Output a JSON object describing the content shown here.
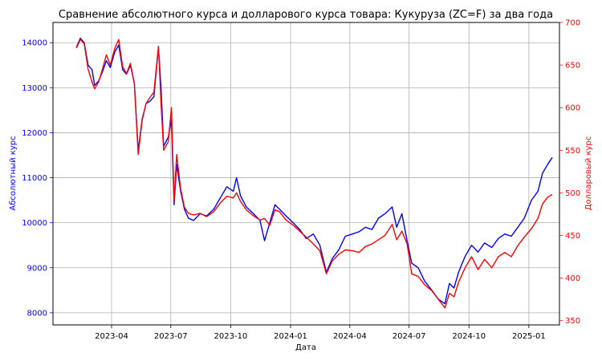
{
  "chart_data": {
    "type": "line",
    "title": "Сравнение абсолютного курса и долларового курса товара: Кукуруза (ZC=F) за два года",
    "xlabel": "Дата",
    "ylabel_left": "Абсолютный курс",
    "ylabel_right": "Долларовый курс",
    "grid": true,
    "x_ticks": [
      "2023-04",
      "2023-07",
      "2023-10",
      "2024-01",
      "2024-04",
      "2024-07",
      "2024-10",
      "2025-01"
    ],
    "y_left_ticks": [
      8000,
      9000,
      10000,
      11000,
      12000,
      13000,
      14000
    ],
    "y_right_ticks": [
      350,
      400,
      450,
      500,
      550,
      600,
      650,
      700
    ],
    "ylim_left": [
      7730,
      14450
    ],
    "ylim_right": [
      345,
      700
    ],
    "xlim": [
      "2023-01-01",
      "2025-02-17"
    ],
    "series": [
      {
        "name": "Абсолютный курс",
        "axis": "left",
        "color": "#0000ff",
        "points": [
          [
            "2023-02-06",
            13900
          ],
          [
            "2023-02-12",
            14100
          ],
          [
            "2023-02-18",
            14000
          ],
          [
            "2023-02-24",
            13500
          ],
          [
            "2023-03-02",
            13400
          ],
          [
            "2023-03-06",
            13050
          ],
          [
            "2023-03-12",
            13150
          ],
          [
            "2023-03-18",
            13350
          ],
          [
            "2023-03-24",
            13600
          ],
          [
            "2023-03-30",
            13450
          ],
          [
            "2023-04-06",
            13800
          ],
          [
            "2023-04-12",
            13950
          ],
          [
            "2023-04-18",
            13400
          ],
          [
            "2023-04-24",
            13300
          ],
          [
            "2023-04-30",
            13500
          ],
          [
            "2023-05-06",
            13100
          ],
          [
            "2023-05-12",
            11600
          ],
          [
            "2023-05-18",
            12300
          ],
          [
            "2023-05-24",
            12650
          ],
          [
            "2023-05-30",
            12700
          ],
          [
            "2023-06-05",
            12800
          ],
          [
            "2023-06-12",
            13900
          ],
          [
            "2023-06-16",
            13000
          ],
          [
            "2023-06-20",
            11700
          ],
          [
            "2023-06-27",
            11900
          ],
          [
            "2023-07-02",
            12300
          ],
          [
            "2023-07-06",
            10400
          ],
          [
            "2023-07-10",
            11300
          ],
          [
            "2023-07-16",
            10700
          ],
          [
            "2023-07-22",
            10300
          ],
          [
            "2023-07-28",
            10100
          ],
          [
            "2023-08-05",
            10050
          ],
          [
            "2023-08-15",
            10200
          ],
          [
            "2023-08-25",
            10150
          ],
          [
            "2023-09-05",
            10300
          ],
          [
            "2023-09-15",
            10550
          ],
          [
            "2023-09-25",
            10800
          ],
          [
            "2023-10-05",
            10700
          ],
          [
            "2023-10-10",
            11000
          ],
          [
            "2023-10-16",
            10600
          ],
          [
            "2023-10-25",
            10350
          ],
          [
            "2023-11-05",
            10200
          ],
          [
            "2023-11-15",
            10050
          ],
          [
            "2023-11-22",
            9600
          ],
          [
            "2023-11-30",
            10000
          ],
          [
            "2023-12-08",
            10400
          ],
          [
            "2023-12-15",
            10300
          ],
          [
            "2023-12-25",
            10150
          ],
          [
            "2024-01-05",
            10000
          ],
          [
            "2024-01-15",
            9850
          ],
          [
            "2024-01-25",
            9650
          ],
          [
            "2024-02-05",
            9750
          ],
          [
            "2024-02-15",
            9500
          ],
          [
            "2024-02-25",
            8900
          ],
          [
            "2024-03-05",
            9200
          ],
          [
            "2024-03-15",
            9400
          ],
          [
            "2024-03-25",
            9700
          ],
          [
            "2024-04-05",
            9750
          ],
          [
            "2024-04-15",
            9800
          ],
          [
            "2024-04-25",
            9900
          ],
          [
            "2024-05-05",
            9850
          ],
          [
            "2024-05-15",
            10100
          ],
          [
            "2024-05-25",
            10200
          ],
          [
            "2024-06-05",
            10350
          ],
          [
            "2024-06-12",
            9900
          ],
          [
            "2024-06-20",
            10200
          ],
          [
            "2024-06-28",
            9600
          ],
          [
            "2024-07-05",
            9100
          ],
          [
            "2024-07-15",
            9000
          ],
          [
            "2024-07-25",
            8700
          ],
          [
            "2024-08-05",
            8500
          ],
          [
            "2024-08-15",
            8300
          ],
          [
            "2024-08-25",
            8200
          ],
          [
            "2024-09-01",
            8650
          ],
          [
            "2024-09-08",
            8550
          ],
          [
            "2024-09-15",
            8900
          ],
          [
            "2024-09-25",
            9250
          ],
          [
            "2024-10-05",
            9500
          ],
          [
            "2024-10-15",
            9350
          ],
          [
            "2024-10-25",
            9550
          ],
          [
            "2024-11-05",
            9450
          ],
          [
            "2024-11-15",
            9650
          ],
          [
            "2024-11-25",
            9750
          ],
          [
            "2024-12-05",
            9700
          ],
          [
            "2024-12-15",
            9900
          ],
          [
            "2024-12-25",
            10100
          ],
          [
            "2025-01-05",
            10500
          ],
          [
            "2025-01-15",
            10700
          ],
          [
            "2025-01-22",
            11100
          ],
          [
            "2025-01-30",
            11300
          ],
          [
            "2025-02-06",
            11450
          ]
        ]
      },
      {
        "name": "Долларовый курс",
        "axis": "right",
        "color": "#ff0000",
        "points": [
          [
            "2023-02-06",
            670
          ],
          [
            "2023-02-12",
            680
          ],
          [
            "2023-02-18",
            675
          ],
          [
            "2023-02-24",
            645
          ],
          [
            "2023-03-02",
            630
          ],
          [
            "2023-03-06",
            622
          ],
          [
            "2023-03-12",
            630
          ],
          [
            "2023-03-18",
            645
          ],
          [
            "2023-03-24",
            662
          ],
          [
            "2023-03-30",
            650
          ],
          [
            "2023-04-06",
            670
          ],
          [
            "2023-04-12",
            680
          ],
          [
            "2023-04-18",
            648
          ],
          [
            "2023-04-24",
            640
          ],
          [
            "2023-04-30",
            652
          ],
          [
            "2023-05-06",
            628
          ],
          [
            "2023-05-12",
            545
          ],
          [
            "2023-05-18",
            585
          ],
          [
            "2023-05-24",
            605
          ],
          [
            "2023-05-30",
            612
          ],
          [
            "2023-06-05",
            618
          ],
          [
            "2023-06-12",
            672
          ],
          [
            "2023-06-16",
            605
          ],
          [
            "2023-06-20",
            550
          ],
          [
            "2023-06-27",
            560
          ],
          [
            "2023-07-02",
            600
          ],
          [
            "2023-07-06",
            490
          ],
          [
            "2023-07-10",
            545
          ],
          [
            "2023-07-16",
            505
          ],
          [
            "2023-07-22",
            483
          ],
          [
            "2023-07-28",
            476
          ],
          [
            "2023-08-05",
            474
          ],
          [
            "2023-08-15",
            476
          ],
          [
            "2023-08-25",
            472
          ],
          [
            "2023-09-05",
            478
          ],
          [
            "2023-09-15",
            488
          ],
          [
            "2023-09-25",
            496
          ],
          [
            "2023-10-05",
            494
          ],
          [
            "2023-10-10",
            500
          ],
          [
            "2023-10-16",
            490
          ],
          [
            "2023-10-25",
            480
          ],
          [
            "2023-11-05",
            473
          ],
          [
            "2023-11-15",
            468
          ],
          [
            "2023-11-22",
            470
          ],
          [
            "2023-11-30",
            462
          ],
          [
            "2023-12-08",
            480
          ],
          [
            "2023-12-15",
            478
          ],
          [
            "2023-12-25",
            468
          ],
          [
            "2024-01-05",
            462
          ],
          [
            "2024-01-15",
            455
          ],
          [
            "2024-01-25",
            448
          ],
          [
            "2024-02-05",
            440
          ],
          [
            "2024-02-15",
            432
          ],
          [
            "2024-02-25",
            405
          ],
          [
            "2024-03-05",
            420
          ],
          [
            "2024-03-15",
            428
          ],
          [
            "2024-03-25",
            433
          ],
          [
            "2024-04-05",
            432
          ],
          [
            "2024-04-15",
            430
          ],
          [
            "2024-04-25",
            437
          ],
          [
            "2024-05-05",
            440
          ],
          [
            "2024-05-15",
            445
          ],
          [
            "2024-05-25",
            450
          ],
          [
            "2024-06-05",
            463
          ],
          [
            "2024-06-12",
            445
          ],
          [
            "2024-06-20",
            455
          ],
          [
            "2024-06-28",
            440
          ],
          [
            "2024-07-05",
            405
          ],
          [
            "2024-07-15",
            402
          ],
          [
            "2024-07-25",
            392
          ],
          [
            "2024-08-05",
            385
          ],
          [
            "2024-08-15",
            375
          ],
          [
            "2024-08-25",
            365
          ],
          [
            "2024-09-01",
            382
          ],
          [
            "2024-09-08",
            378
          ],
          [
            "2024-09-15",
            395
          ],
          [
            "2024-09-25",
            412
          ],
          [
            "2024-10-05",
            425
          ],
          [
            "2024-10-15",
            410
          ],
          [
            "2024-10-25",
            422
          ],
          [
            "2024-11-05",
            412
          ],
          [
            "2024-11-15",
            425
          ],
          [
            "2024-11-25",
            430
          ],
          [
            "2024-12-05",
            425
          ],
          [
            "2024-12-15",
            438
          ],
          [
            "2024-12-25",
            448
          ],
          [
            "2025-01-05",
            458
          ],
          [
            "2025-01-15",
            470
          ],
          [
            "2025-01-22",
            487
          ],
          [
            "2025-01-30",
            495
          ],
          [
            "2025-02-06",
            498
          ]
        ]
      }
    ]
  }
}
